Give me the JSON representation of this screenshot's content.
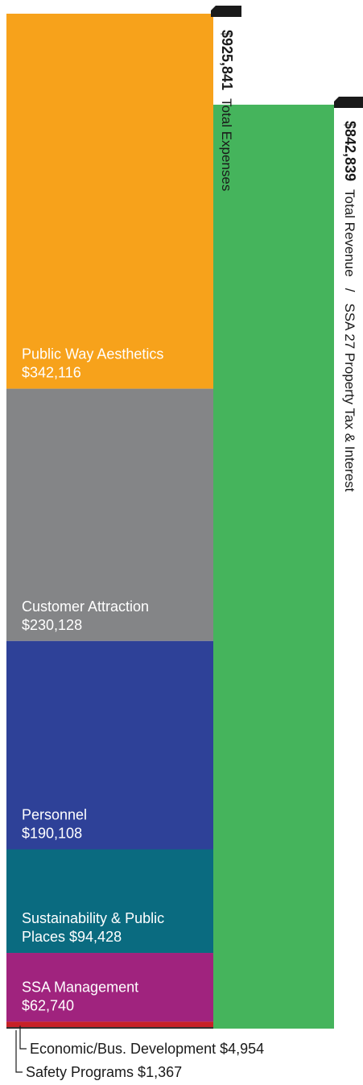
{
  "chart_data": {
    "type": "bar",
    "orientation": "vertical-stacked",
    "expenses": {
      "total_value": "$925,841",
      "total_label": "Total Expenses",
      "segments": [
        {
          "name": "Public Way Aesthetics",
          "lines": [
            "Public Way Aesthetics"
          ],
          "amount": "$342,116",
          "value": 342116,
          "color": "#F7A21B"
        },
        {
          "name": "Customer Attraction",
          "lines": [
            "Customer Attraction"
          ],
          "amount": "$230,128",
          "value": 230128,
          "color": "#848587"
        },
        {
          "name": "Personnel",
          "lines": [
            "Personnel"
          ],
          "amount": "$190,108",
          "value": 190108,
          "color": "#2E4198"
        },
        {
          "name": "Sustainability & Public Places",
          "lines": [
            "Sustainability & Public",
            "Places"
          ],
          "amount": "$94,428",
          "value": 94428,
          "color": "#0A6B80"
        },
        {
          "name": "SSA Management",
          "lines": [
            "SSA Management"
          ],
          "amount": "$62,740",
          "value": 62740,
          "color": "#A0237E"
        },
        {
          "name": "Economic/Bus. Development",
          "lines": [
            "Economic/Bus. Development"
          ],
          "amount": "$4,954",
          "value": 4954,
          "color": "#C72127"
        },
        {
          "name": "Safety Programs",
          "lines": [
            "Safety Programs"
          ],
          "amount": "$1,367",
          "value": 1367,
          "color": "#231F20"
        }
      ]
    },
    "revenue": {
      "total_value": "$842,839",
      "total_label": "Total Revenue",
      "separator": "/",
      "source_label": "SSA 27 Property Tax & Interest",
      "value": 842839,
      "color": "#45B45C"
    },
    "small_labels": [
      {
        "text": "Economic/Bus. Development  $4,954",
        "segment": "Economic/Bus. Development"
      },
      {
        "text": "Safety Programs  $1,367",
        "segment": "Safety Programs"
      }
    ]
  }
}
